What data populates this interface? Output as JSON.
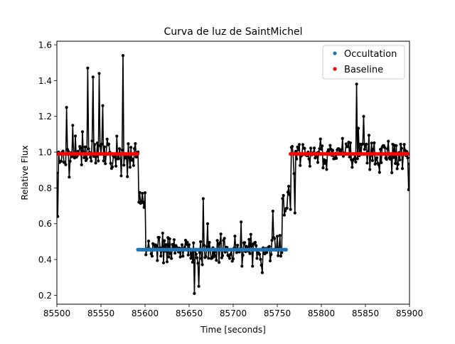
{
  "chart_data": {
    "type": "scatter",
    "title": "Curva de luz de SaintMichel",
    "xlabel": "Time [seconds]",
    "ylabel": "Relative Flux",
    "xlim": [
      85500,
      85900
    ],
    "ylim": [
      0.15,
      1.62
    ],
    "xticks": [
      85500,
      85550,
      85600,
      85650,
      85700,
      85750,
      85800,
      85850,
      85900
    ],
    "yticks": [
      0.2,
      0.4,
      0.6,
      0.8,
      1.0,
      1.2,
      1.4,
      1.6
    ],
    "ytick_labels": [
      "0.2",
      "0.4",
      "0.6",
      "0.8",
      "1.0",
      "1.2",
      "1.4",
      "1.6"
    ],
    "grid": false,
    "legend_position": "top-right",
    "colors": {
      "data": "#000000",
      "occultation": "#1f77b4",
      "baseline": "#ff0000"
    },
    "light_curve": {
      "x_start": 85500,
      "x_end": 85900,
      "x_step": 1,
      "seed": 20240517,
      "noise_scale": 0.1,
      "segments": [
        {
          "x_from": 85500,
          "x_to": 85592,
          "level": 0.99
        },
        {
          "x_from": 85592,
          "x_to": 85600,
          "level": 0.72
        },
        {
          "x_from": 85600,
          "x_to": 85755,
          "level": 0.455
        },
        {
          "x_from": 85755,
          "x_to": 85765,
          "level": 0.72
        },
        {
          "x_from": 85765,
          "x_to": 85900,
          "level": 0.99
        }
      ],
      "spikes": [
        {
          "x": 85501,
          "y": 0.64
        },
        {
          "x": 85511,
          "y": 1.25
        },
        {
          "x": 85518,
          "y": 1.15
        },
        {
          "x": 85535,
          "y": 1.47
        },
        {
          "x": 85541,
          "y": 1.42
        },
        {
          "x": 85548,
          "y": 1.44
        },
        {
          "x": 85552,
          "y": 1.26
        },
        {
          "x": 85575,
          "y": 1.54
        },
        {
          "x": 85656,
          "y": 0.21
        },
        {
          "x": 85661,
          "y": 0.25
        },
        {
          "x": 85666,
          "y": 0.74
        },
        {
          "x": 85671,
          "y": 0.6
        },
        {
          "x": 85709,
          "y": 0.61
        },
        {
          "x": 85745,
          "y": 0.67
        },
        {
          "x": 85770,
          "y": 0.66
        },
        {
          "x": 85840,
          "y": 1.38
        },
        {
          "x": 85848,
          "y": 1.2
        },
        {
          "x": 85899,
          "y": 0.79
        }
      ]
    },
    "series": [
      {
        "name": "Occultation",
        "x_from": 85592,
        "x_to": 85760,
        "y": 0.455,
        "color": "#1f77b4"
      },
      {
        "name": "Baseline",
        "x_from": 85500,
        "x_to": 85592,
        "y": 0.99,
        "color": "#ff0000"
      },
      {
        "name": "Baseline",
        "x_from": 85765,
        "x_to": 85900,
        "y": 0.99,
        "color": "#ff0000"
      }
    ],
    "legend": [
      {
        "label": "Occultation",
        "color": "#1f77b4"
      },
      {
        "label": "Baseline",
        "color": "#ff0000"
      }
    ]
  }
}
